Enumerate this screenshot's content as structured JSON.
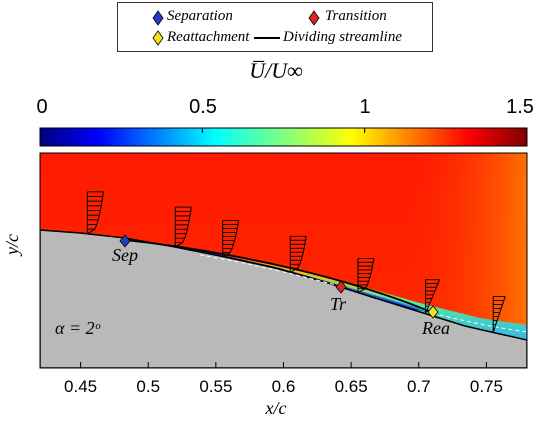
{
  "legend": {
    "items": [
      {
        "label": "Separation",
        "marker": "diamond",
        "color": "#1f3fbf"
      },
      {
        "label": "Transition",
        "marker": "diamond",
        "color": "#d42a1a"
      },
      {
        "label": "Reattachment",
        "marker": "diamond",
        "color": "#f5e31a"
      },
      {
        "label": "Dividing streamline",
        "marker": "line",
        "color": "#000000"
      }
    ]
  },
  "colorbar": {
    "title": "U̅/U∞",
    "ticks": [
      "0",
      "0.5",
      "1",
      "1.5"
    ],
    "range": [
      0,
      1.5
    ],
    "colormap": "jet"
  },
  "annotations": {
    "sep": "Sep",
    "tr": "Tr",
    "rea": "Rea",
    "alpha": "α = 2ᵒ"
  },
  "chart_data": {
    "type": "heatmap",
    "xlabel": "x/c",
    "ylabel": "y/c",
    "xlim": [
      0.42,
      0.78
    ],
    "xticks": [
      "0.45",
      "0.5",
      "0.55",
      "0.6",
      "0.65",
      "0.7",
      "0.75"
    ],
    "xtick_values": [
      0.45,
      0.5,
      0.55,
      0.6,
      0.65,
      0.7,
      0.75
    ],
    "points": {
      "separation": 0.483,
      "transition": 0.642,
      "reattachment": 0.71
    },
    "profile_stations": [
      0.455,
      0.52,
      0.555,
      0.605,
      0.655,
      0.705,
      0.755
    ],
    "angle_of_attack_deg": 2
  }
}
